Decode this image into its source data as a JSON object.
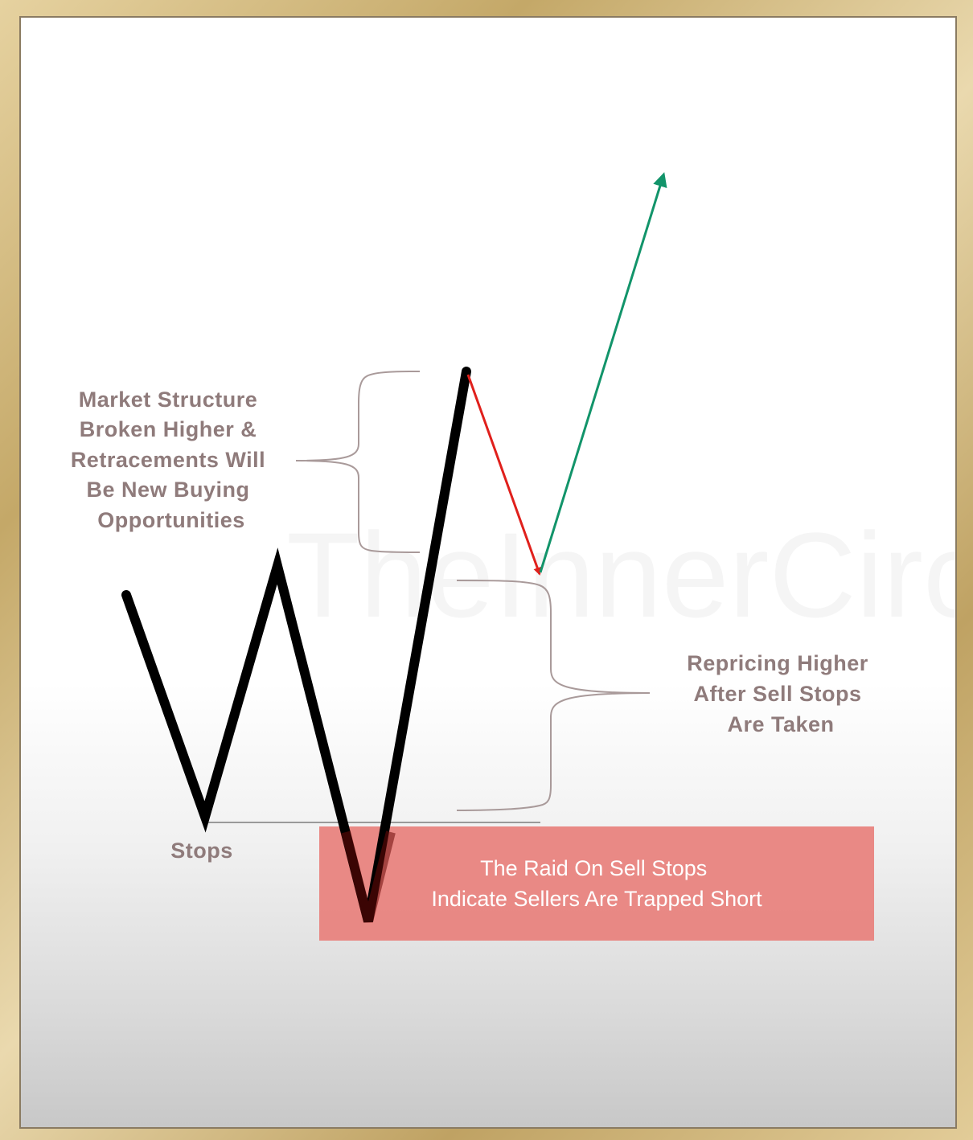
{
  "watermark": "TheInnerCirc",
  "annotations": {
    "market_structure": [
      "Market Structure",
      "Broken Higher &",
      "Retracements Will",
      "Be New Buying",
      "Opportunities"
    ],
    "repricing": [
      "Repricing Higher",
      "After Sell Stops",
      "Are Taken"
    ],
    "stops": "Stops",
    "raid_box": [
      "The Raid On Sell Stops",
      "Indicate Sellers Are Trapped Short"
    ]
  },
  "colors": {
    "price_line": "#000000",
    "retracement_arrow": "#e0201c",
    "expansion_arrow": "#12946a",
    "raid_box": "#e8807c",
    "bracket": "#a99a9a",
    "label": "#8f7b7b"
  }
}
